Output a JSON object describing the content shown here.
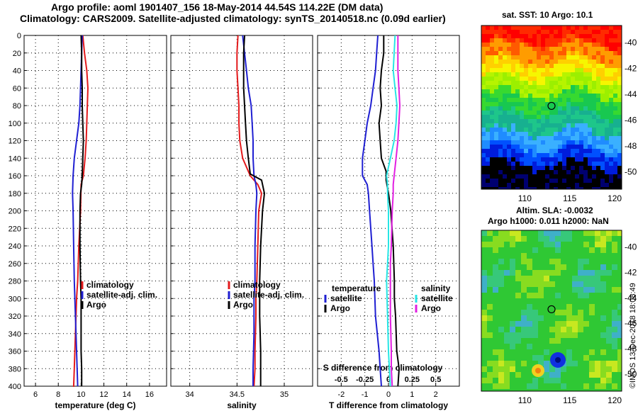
{
  "header": {
    "line1": "Argo profile: aoml 1901407_156 18-May-2014 44.54S 114.22E (DM data)",
    "line2": "Climatology: CARS2009. Satellite-adjusted climatology: synTS_20140518.nc (0.09d earlier)"
  },
  "watermark": "©IMOS 13-Dec-2018 18:08:49",
  "colors": {
    "climatology": "#e31a1c",
    "satellite": "#1f1fd2",
    "argo": "#000000",
    "satellite_s": "#27e5e5",
    "argo_s": "#e11fe1"
  },
  "chart_data": [
    {
      "type": "line",
      "id": "temperature",
      "xlabel": "temperature (deg C)",
      "ylabel": "",
      "xlim": [
        5,
        17.5
      ],
      "ylim": [
        400,
        0
      ],
      "xticks": [
        6,
        8,
        10,
        12,
        14,
        16
      ],
      "xticklabels": [
        "6",
        "8",
        "10",
        "12",
        "14",
        "16"
      ],
      "yticks": [
        0,
        20,
        40,
        60,
        80,
        100,
        120,
        140,
        160,
        180,
        200,
        220,
        240,
        260,
        280,
        300,
        320,
        340,
        360,
        380,
        400
      ],
      "legend": [
        "climatology",
        "satellite-adj. clim.",
        "Argo"
      ],
      "legend_loc": "lower-right",
      "series": [
        {
          "name": "climatology",
          "color": "#e31a1c",
          "x": [
            10.15,
            10.3,
            10.5,
            10.6,
            10.55,
            10.5,
            10.45,
            10.35,
            10.2,
            10.0,
            9.95,
            9.8,
            9.7,
            9.6,
            9.55,
            9.5,
            9.45,
            9.4,
            9.35,
            9.3
          ],
          "depth": [
            0,
            20,
            40,
            60,
            80,
            100,
            120,
            140,
            160,
            170,
            200,
            240,
            280,
            300,
            320,
            340,
            360,
            380,
            400,
            400
          ]
        },
        {
          "name": "satellite-adj. clim.",
          "color": "#1f1fd2",
          "x": [
            10.1,
            10.05,
            10.0,
            9.95,
            9.9,
            9.8,
            9.6,
            9.4,
            9.3,
            9.25,
            9.3,
            9.35,
            9.4,
            9.45,
            9.5,
            9.55,
            9.6,
            9.65,
            9.7
          ],
          "depth": [
            0,
            20,
            40,
            60,
            80,
            100,
            120,
            140,
            160,
            180,
            200,
            240,
            280,
            300,
            320,
            340,
            360,
            380,
            400
          ]
        },
        {
          "name": "Argo",
          "color": "#000000",
          "x": [
            10.0,
            10.05,
            10.05,
            10.1,
            10.1,
            10.15,
            10.2,
            10.15,
            10.1,
            10.05,
            9.95,
            9.9,
            9.9,
            9.95,
            10.0,
            10.0,
            10.0,
            10.05,
            10.05
          ],
          "depth": [
            0,
            20,
            40,
            60,
            80,
            100,
            120,
            140,
            160,
            170,
            180,
            200,
            240,
            280,
            300,
            320,
            360,
            380,
            400
          ]
        }
      ]
    },
    {
      "type": "line",
      "id": "salinity",
      "xlabel": "salinity",
      "ylabel": "",
      "xlim": [
        33.8,
        35.3
      ],
      "ylim": [
        400,
        0
      ],
      "xticks": [
        34,
        34.5,
        35
      ],
      "xticklabels": [
        "34",
        "34.5",
        "35"
      ],
      "legend": [
        "climatology",
        "satellite-adj. clim.",
        "Argo"
      ],
      "legend_loc": "lower-right",
      "series": [
        {
          "name": "climatology",
          "color": "#e31a1c",
          "x": [
            34.51,
            34.5,
            34.5,
            34.51,
            34.52,
            34.52,
            34.53,
            34.56,
            34.64,
            34.72,
            34.76,
            34.73,
            34.72,
            34.71,
            34.7,
            34.7,
            34.69,
            34.69,
            34.68
          ],
          "depth": [
            0,
            20,
            40,
            60,
            80,
            100,
            120,
            140,
            160,
            170,
            180,
            200,
            240,
            280,
            300,
            320,
            360,
            380,
            400
          ]
        },
        {
          "name": "satellite-adj. clim.",
          "color": "#1f1fd2",
          "x": [
            34.56,
            34.58,
            34.6,
            34.62,
            34.65,
            34.66,
            34.67,
            34.67,
            34.68,
            34.7,
            34.71,
            34.7,
            34.69,
            34.69,
            34.68,
            34.68,
            34.67,
            34.67
          ],
          "depth": [
            0,
            20,
            40,
            60,
            80,
            100,
            120,
            140,
            160,
            170,
            180,
            200,
            240,
            280,
            300,
            340,
            380,
            400
          ]
        },
        {
          "name": "Argo",
          "color": "#000000",
          "x": [
            34.58,
            34.57,
            34.57,
            34.57,
            34.58,
            34.59,
            34.6,
            34.62,
            34.64,
            34.76,
            34.79,
            34.77,
            34.75,
            34.74,
            34.74,
            34.74,
            34.75,
            34.75,
            34.75
          ],
          "depth": [
            0,
            20,
            40,
            60,
            80,
            100,
            120,
            140,
            158,
            165,
            180,
            200,
            240,
            280,
            300,
            320,
            360,
            380,
            400
          ]
        }
      ]
    },
    {
      "type": "line",
      "id": "difference",
      "xlabel": "T difference from climatology",
      "xlabel_top": "S difference from climatology",
      "xlim": [
        -3,
        3
      ],
      "ylim": [
        400,
        0
      ],
      "xticks": [
        -2,
        -1,
        0,
        1,
        2
      ],
      "xticklabels": [
        "-2",
        "-1",
        "0",
        "1",
        "2"
      ],
      "sticks": [
        -0.5,
        -0.25,
        0,
        0.25,
        0.5
      ],
      "sticklabels": [
        "-0.5",
        "-0.25",
        "0",
        "0.25",
        "0.5"
      ],
      "slim": [
        -0.75,
        0.75
      ],
      "legend_groups": [
        {
          "title": "temperature",
          "items": [
            "satellite",
            "Argo"
          ]
        },
        {
          "title": "salinity",
          "items": [
            "satellite",
            "Argo"
          ]
        }
      ],
      "series": [
        {
          "name": "T satellite",
          "color": "#1f1fd2",
          "axis": "T",
          "x": [
            -0.45,
            -0.5,
            -0.55,
            -0.65,
            -0.75,
            -0.9,
            -1.0,
            -1.1,
            -1.1,
            -0.9,
            -0.85,
            -0.8,
            -0.7,
            -0.65,
            -0.6,
            -0.55,
            -0.4,
            -0.35,
            -0.3
          ],
          "depth": [
            0,
            20,
            40,
            60,
            80,
            100,
            120,
            140,
            160,
            170,
            180,
            200,
            240,
            260,
            280,
            320,
            360,
            380,
            400
          ]
        },
        {
          "name": "T Argo",
          "color": "#000000",
          "axis": "T",
          "x": [
            -0.2,
            -0.2,
            -0.3,
            -0.35,
            -0.3,
            -0.4,
            -0.35,
            -0.3,
            -0.1,
            -0.1,
            0.0,
            0.1,
            0.2,
            0.25,
            0.25,
            0.3,
            0.35,
            0.45,
            0.4
          ],
          "depth": [
            0,
            20,
            40,
            60,
            80,
            100,
            120,
            140,
            155,
            165,
            180,
            200,
            240,
            280,
            300,
            320,
            360,
            380,
            400
          ]
        },
        {
          "name": "S satellite",
          "color": "#27e5e5",
          "axis": "S",
          "x": [
            0.07,
            0.06,
            0.05,
            0.07,
            0.09,
            0.08,
            0.06,
            0.02,
            -0.02,
            -0.01,
            -0.01,
            0.0,
            0.0,
            -0.01,
            -0.02,
            -0.01,
            0.0,
            0.01,
            0.02
          ],
          "depth": [
            0,
            20,
            40,
            60,
            80,
            100,
            120,
            140,
            160,
            170,
            180,
            200,
            240,
            260,
            280,
            320,
            360,
            380,
            400
          ]
        },
        {
          "name": "S Argo",
          "color": "#e11fe1",
          "axis": "S",
          "x": [
            0.1,
            0.1,
            0.1,
            0.11,
            0.12,
            0.11,
            0.1,
            0.08,
            0.06,
            0.05,
            0.05,
            0.04,
            0.03,
            0.02,
            0.02,
            0.02,
            0.03,
            0.03,
            0.04
          ],
          "depth": [
            0,
            20,
            40,
            60,
            80,
            100,
            120,
            140,
            160,
            170,
            180,
            200,
            240,
            260,
            280,
            320,
            360,
            380,
            400
          ]
        }
      ]
    }
  ],
  "maps": [
    {
      "id": "sst",
      "title": "sat. SST: 10 Argo: 10.1",
      "xticks": [
        "110",
        "115",
        "120"
      ],
      "yticks": [
        "-40",
        "-42",
        "-44",
        "-46",
        "-48",
        "-50"
      ]
    },
    {
      "id": "sla",
      "title": "Altim. SLA: -0.0032",
      "subtitle": "Argo h1000: 0.011 h2000: NaN",
      "xticks": [
        "110",
        "115",
        "120"
      ],
      "yticks": [
        "-40",
        "-42",
        "-44",
        "-46",
        "-48",
        "-50"
      ]
    }
  ]
}
